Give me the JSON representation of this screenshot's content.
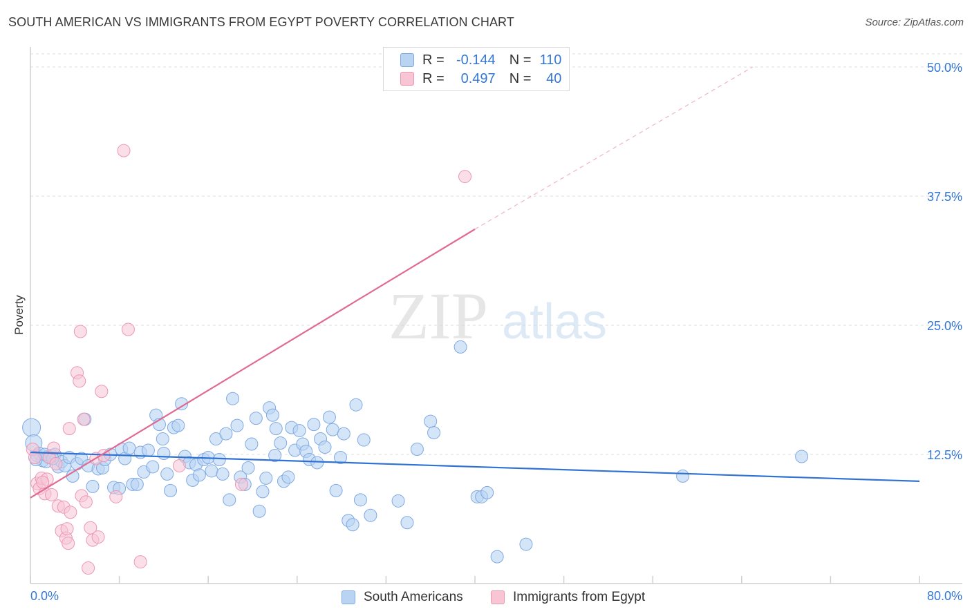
{
  "title": "SOUTH AMERICAN VS IMMIGRANTS FROM EGYPT POVERTY CORRELATION CHART",
  "source": "Source: ZipAtlas.com",
  "watermark": {
    "zip": "ZIP",
    "atlas": "atlas"
  },
  "legend": {
    "rows": [
      {
        "r_label": "R =",
        "r_value": "-0.144",
        "n_label": "N =",
        "n_value": "110"
      },
      {
        "r_label": "R =",
        "r_value": "0.497",
        "n_label": "N =",
        "n_value": "40"
      }
    ]
  },
  "bottom_legend": {
    "series1": "South Americans",
    "series2": "Immigrants from Egypt"
  },
  "colors": {
    "blue_fill": "#b9d3f3",
    "blue_stroke": "#7fa9e3",
    "blue_line": "#2f72d4",
    "pink_fill": "#f8c5d5",
    "pink_stroke": "#ec96b2",
    "pink_line": "#e06a92",
    "axis_text": "#3478d4",
    "grid": "#dcdcdc"
  },
  "chart_data": {
    "type": "scatter",
    "title": "SOUTH AMERICAN VS IMMIGRANTS FROM EGYPT POVERTY CORRELATION CHART",
    "xlabel": "",
    "ylabel": "Poverty",
    "xlim": [
      0,
      80
    ],
    "ylim": [
      0,
      50
    ],
    "x_tick_labels": {
      "left": "0.0%",
      "right": "80.0%"
    },
    "y_ticks": [
      12.5,
      25.0,
      37.5,
      50.0
    ],
    "y_tick_labels": [
      "12.5%",
      "25.0%",
      "37.5%",
      "50.0%"
    ],
    "grid": true,
    "legend_position": "top-center",
    "series": [
      {
        "name": "South Americans",
        "R": -0.144,
        "N": 110,
        "trend": {
          "x0": 0,
          "y0": 12.7,
          "x1": 80,
          "y1": 9.9
        },
        "points": [
          [
            0.1,
            15.1
          ],
          [
            0.3,
            13.6
          ],
          [
            0.6,
            12.4
          ],
          [
            0.8,
            12.6
          ],
          [
            1.1,
            11.9
          ],
          [
            1.4,
            11.8
          ],
          [
            1.6,
            12.3
          ],
          [
            1.9,
            12.4
          ],
          [
            2.2,
            12.5
          ],
          [
            2.5,
            11.3
          ],
          [
            2.8,
            11.8
          ],
          [
            3.1,
            11.4
          ],
          [
            3.5,
            12.2
          ],
          [
            3.8,
            10.4
          ],
          [
            4.2,
            11.6
          ],
          [
            4.6,
            12.1
          ],
          [
            4.9,
            15.9
          ],
          [
            5.2,
            11.4
          ],
          [
            5.6,
            9.4
          ],
          [
            6.1,
            11.1
          ],
          [
            6.5,
            11.2
          ],
          [
            6.7,
            12.0
          ],
          [
            7.2,
            12.5
          ],
          [
            7.5,
            9.3
          ],
          [
            8.0,
            9.2
          ],
          [
            8.2,
            13.0
          ],
          [
            8.5,
            12.1
          ],
          [
            8.9,
            13.1
          ],
          [
            9.2,
            9.6
          ],
          [
            9.6,
            9.6
          ],
          [
            9.9,
            12.7
          ],
          [
            10.2,
            10.8
          ],
          [
            10.6,
            12.9
          ],
          [
            11.0,
            11.3
          ],
          [
            11.3,
            16.3
          ],
          [
            11.6,
            15.4
          ],
          [
            11.9,
            14.0
          ],
          [
            12.3,
            10.6
          ],
          [
            12.6,
            9.0
          ],
          [
            12.9,
            15.1
          ],
          [
            13.3,
            15.3
          ],
          [
            13.6,
            17.4
          ],
          [
            13.9,
            12.3
          ],
          [
            14.3,
            11.7
          ],
          [
            14.6,
            10.0
          ],
          [
            14.9,
            11.5
          ],
          [
            15.2,
            10.5
          ],
          [
            15.6,
            12.0
          ],
          [
            16.0,
            12.2
          ],
          [
            16.3,
            10.9
          ],
          [
            16.7,
            14.0
          ],
          [
            17.0,
            12.0
          ],
          [
            17.3,
            10.6
          ],
          [
            17.6,
            14.5
          ],
          [
            17.9,
            8.1
          ],
          [
            18.2,
            17.9
          ],
          [
            18.6,
            15.3
          ],
          [
            18.9,
            10.3
          ],
          [
            19.3,
            9.6
          ],
          [
            19.6,
            11.2
          ],
          [
            19.9,
            13.5
          ],
          [
            20.3,
            16.0
          ],
          [
            20.6,
            7.0
          ],
          [
            20.9,
            8.9
          ],
          [
            21.2,
            10.2
          ],
          [
            21.5,
            17.0
          ],
          [
            21.8,
            16.3
          ],
          [
            22.1,
            15.0
          ],
          [
            22.5,
            13.6
          ],
          [
            22.8,
            9.9
          ],
          [
            23.2,
            10.3
          ],
          [
            23.5,
            15.1
          ],
          [
            23.8,
            12.9
          ],
          [
            24.2,
            14.8
          ],
          [
            24.5,
            13.5
          ],
          [
            24.8,
            12.8
          ],
          [
            25.1,
            12.0
          ],
          [
            25.5,
            15.4
          ],
          [
            25.8,
            11.7
          ],
          [
            26.1,
            14.0
          ],
          [
            26.5,
            13.2
          ],
          [
            26.9,
            16.1
          ],
          [
            27.2,
            14.9
          ],
          [
            27.5,
            9.0
          ],
          [
            27.9,
            12.2
          ],
          [
            28.2,
            14.5
          ],
          [
            28.6,
            6.1
          ],
          [
            29.0,
            5.7
          ],
          [
            29.3,
            17.3
          ],
          [
            29.7,
            8.1
          ],
          [
            30.0,
            13.9
          ],
          [
            30.6,
            6.6
          ],
          [
            33.1,
            8.0
          ],
          [
            33.9,
            5.9
          ],
          [
            34.8,
            13.0
          ],
          [
            36.0,
            15.7
          ],
          [
            36.3,
            14.6
          ],
          [
            38.7,
            22.9
          ],
          [
            40.2,
            8.4
          ],
          [
            40.6,
            8.4
          ],
          [
            41.1,
            8.8
          ],
          [
            42.0,
            2.6
          ],
          [
            44.6,
            3.8
          ],
          [
            58.7,
            10.4
          ],
          [
            69.4,
            12.3
          ],
          [
            0.5,
            12.0
          ],
          [
            1.3,
            12.5
          ],
          [
            2.0,
            12.1
          ],
          [
            12.0,
            12.6
          ],
          [
            22.0,
            12.4
          ]
        ]
      },
      {
        "name": "Immigrants from Egypt",
        "R": 0.497,
        "N": 40,
        "trend": {
          "x0": 0,
          "y0": 8.3,
          "x1": 40,
          "y1": 34.3,
          "dash_x1": 65,
          "dash_y1": 50.0
        },
        "points": [
          [
            0.2,
            13.0
          ],
          [
            0.4,
            12.2
          ],
          [
            0.6,
            9.7
          ],
          [
            0.8,
            9.2
          ],
          [
            1.0,
            10.2
          ],
          [
            1.3,
            8.7
          ],
          [
            1.5,
            10.1
          ],
          [
            1.7,
            12.2
          ],
          [
            1.9,
            8.6
          ],
          [
            2.1,
            13.1
          ],
          [
            2.3,
            11.6
          ],
          [
            2.5,
            7.5
          ],
          [
            2.8,
            5.1
          ],
          [
            3.0,
            7.4
          ],
          [
            3.2,
            4.4
          ],
          [
            3.3,
            5.3
          ],
          [
            3.4,
            3.9
          ],
          [
            3.6,
            6.9
          ],
          [
            3.5,
            15.0
          ],
          [
            4.2,
            20.4
          ],
          [
            4.4,
            19.6
          ],
          [
            4.5,
            24.4
          ],
          [
            4.6,
            8.5
          ],
          [
            4.8,
            15.9
          ],
          [
            5.0,
            7.9
          ],
          [
            5.2,
            1.5
          ],
          [
            5.4,
            5.4
          ],
          [
            5.6,
            4.2
          ],
          [
            5.9,
            12.1
          ],
          [
            6.1,
            4.5
          ],
          [
            6.4,
            18.6
          ],
          [
            6.6,
            12.4
          ],
          [
            7.7,
            8.4
          ],
          [
            8.4,
            41.9
          ],
          [
            8.8,
            24.6
          ],
          [
            9.9,
            2.1
          ],
          [
            13.4,
            11.4
          ],
          [
            19.0,
            9.6
          ],
          [
            39.1,
            39.4
          ],
          [
            1.1,
            9.8
          ]
        ]
      }
    ]
  }
}
